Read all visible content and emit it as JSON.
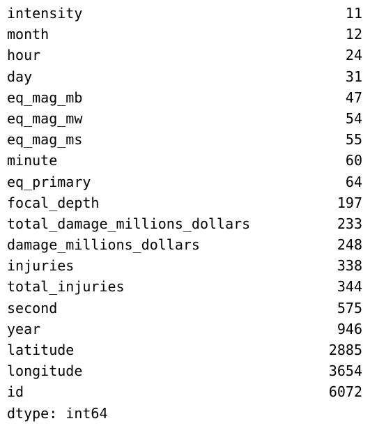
{
  "series": {
    "rows": [
      {
        "name": "intensity",
        "value": "11"
      },
      {
        "name": "month",
        "value": "12"
      },
      {
        "name": "hour",
        "value": "24"
      },
      {
        "name": "day",
        "value": "31"
      },
      {
        "name": "eq_mag_mb",
        "value": "47"
      },
      {
        "name": "eq_mag_mw",
        "value": "54"
      },
      {
        "name": "eq_mag_ms",
        "value": "55"
      },
      {
        "name": "minute",
        "value": "60"
      },
      {
        "name": "eq_primary",
        "value": "64"
      },
      {
        "name": "focal_depth",
        "value": "197"
      },
      {
        "name": "total_damage_millions_dollars",
        "value": "233"
      },
      {
        "name": "damage_millions_dollars",
        "value": "248"
      },
      {
        "name": "injuries",
        "value": "338"
      },
      {
        "name": "total_injuries",
        "value": "344"
      },
      {
        "name": "second",
        "value": "575"
      },
      {
        "name": "year",
        "value": "946"
      },
      {
        "name": "latitude",
        "value": "2885"
      },
      {
        "name": "longitude",
        "value": "3654"
      },
      {
        "name": "id",
        "value": "6072"
      }
    ],
    "dtype_line": "dtype: int64"
  }
}
